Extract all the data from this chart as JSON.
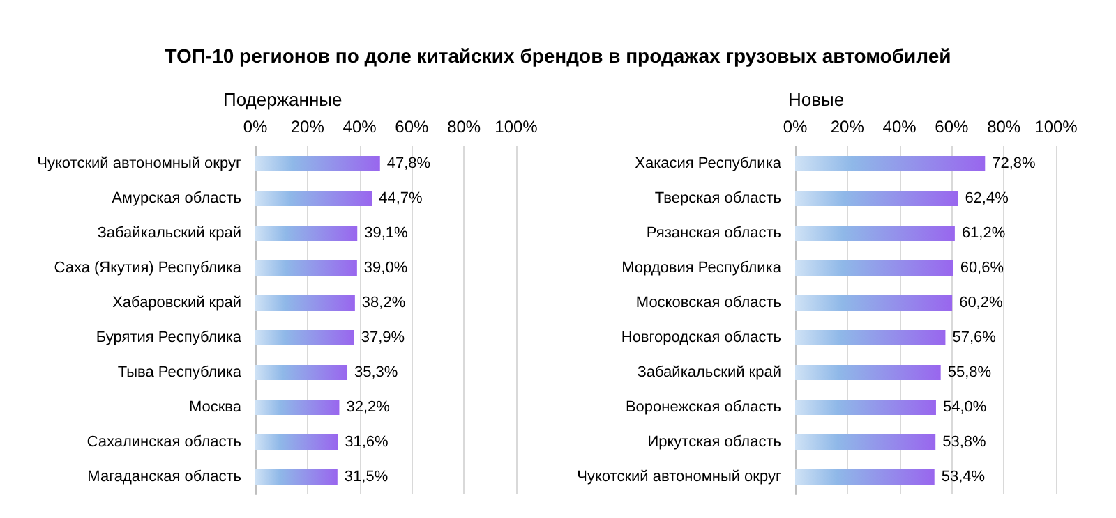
{
  "chart_data": [
    {
      "type": "bar",
      "orientation": "horizontal",
      "title": "ТОП-10 регионов по доле китайских брендов в продажах грузовых автомобилей",
      "subtitle": "Подержанные",
      "categories": [
        "Чукотский автономный округ",
        "Амурская область",
        "Забайкальский край",
        "Саха (Якутия) Республика",
        "Хабаровский край",
        "Бурятия Республика",
        "Тыва Республика",
        "Москва",
        "Сахалинская область",
        "Магаданская область"
      ],
      "values": [
        47.8,
        44.7,
        39.1,
        39.0,
        38.2,
        37.9,
        35.3,
        32.2,
        31.6,
        31.5
      ],
      "value_labels": [
        "47,8%",
        "44,7%",
        "39,1%",
        "39,0%",
        "38,2%",
        "37,9%",
        "35,3%",
        "32,2%",
        "31,6%",
        "31,5%"
      ],
      "color": "#9966ee",
      "xlim": [
        0,
        100
      ],
      "xticks": [
        {
          "value": 0,
          "label": "0%"
        },
        {
          "value": 20,
          "label": "20%"
        },
        {
          "value": 40,
          "label": "40%"
        },
        {
          "value": 60,
          "label": "60%"
        },
        {
          "value": 80,
          "label": "80%"
        },
        {
          "value": 100,
          "label": "100%"
        }
      ],
      "grid": "x"
    },
    {
      "type": "bar",
      "orientation": "horizontal",
      "subtitle": "Новые",
      "categories": [
        "Хакасия Республика",
        "Тверская область",
        "Рязанская область",
        "Мордовия Республика",
        "Московская область",
        "Новгородская область",
        "Забайкальский край",
        "Воронежская область",
        "Иркутская область",
        "Чукотский автономный округ"
      ],
      "values": [
        72.8,
        62.4,
        61.2,
        60.6,
        60.2,
        57.6,
        55.8,
        54.0,
        53.8,
        53.4
      ],
      "value_labels": [
        "72,8%",
        "62,4%",
        "61,2%",
        "60,6%",
        "60,2%",
        "57,6%",
        "55,8%",
        "54,0%",
        "53,8%",
        "53,4%"
      ],
      "color": "#9966ee",
      "xlim": [
        0,
        100
      ],
      "xticks": [
        {
          "value": 0,
          "label": "0%"
        },
        {
          "value": 20,
          "label": "20%"
        },
        {
          "value": 40,
          "label": "40%"
        },
        {
          "value": 60,
          "label": "60%"
        },
        {
          "value": 80,
          "label": "80%"
        },
        {
          "value": 100,
          "label": "100%"
        }
      ],
      "grid": "x"
    }
  ]
}
